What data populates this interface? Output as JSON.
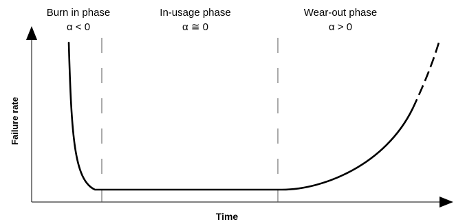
{
  "diagram": {
    "phases": [
      {
        "name": "Burn in phase",
        "condition": "α < 0"
      },
      {
        "name": "In-usage phase",
        "condition": "α ≅ 0"
      },
      {
        "name": "Wear-out phase",
        "condition": "α > 0"
      }
    ],
    "x_axis_label": "Time",
    "y_axis_label": "Failure rate"
  }
}
